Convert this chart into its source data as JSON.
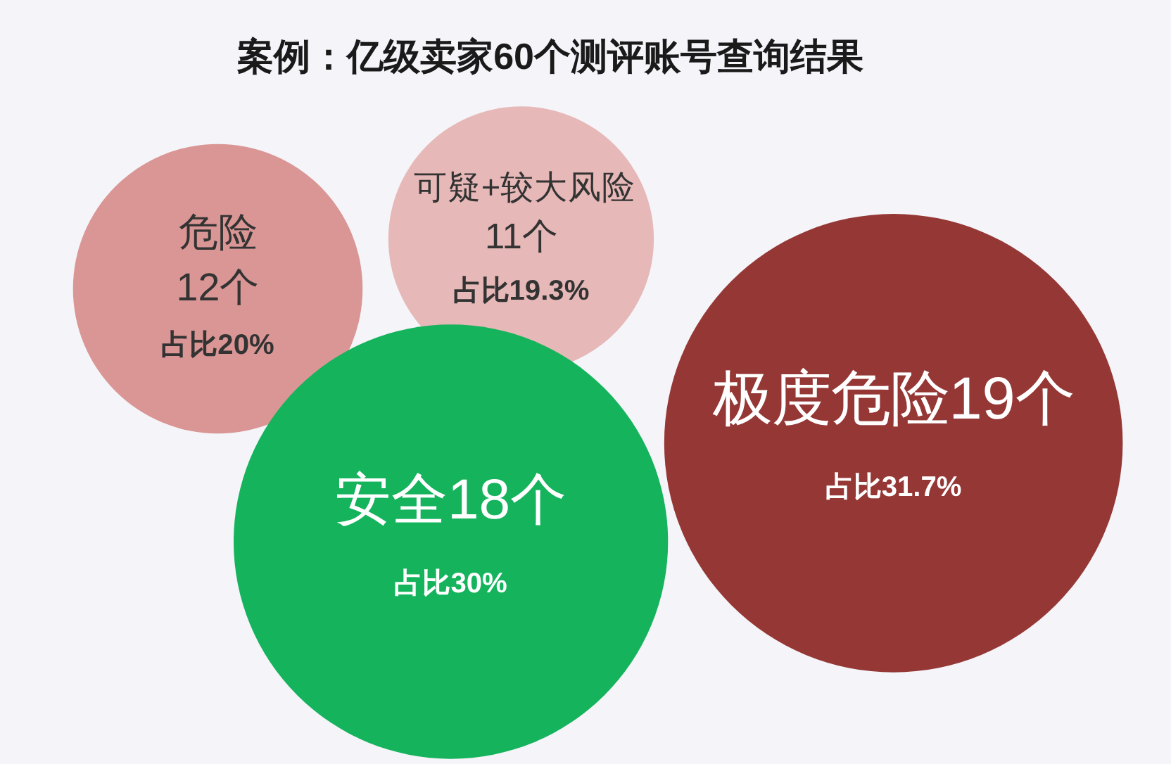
{
  "chart_data": {
    "type": "other",
    "title": "案例：亿级卖家60个测评账号查询结果",
    "categories": [
      "危险",
      "可疑+较大风险",
      "极度危险",
      "安全"
    ],
    "values": [
      12,
      11,
      19,
      18
    ],
    "value_labels": [
      "12个",
      "11个",
      "19个",
      "18个"
    ],
    "colors": [
      "#d99694",
      "#e6b8b7",
      "#953735",
      "#14b35c"
    ],
    "annotations": [
      "占比20%",
      "占比19.3%",
      "占比31.7%",
      "占比30%"
    ]
  }
}
